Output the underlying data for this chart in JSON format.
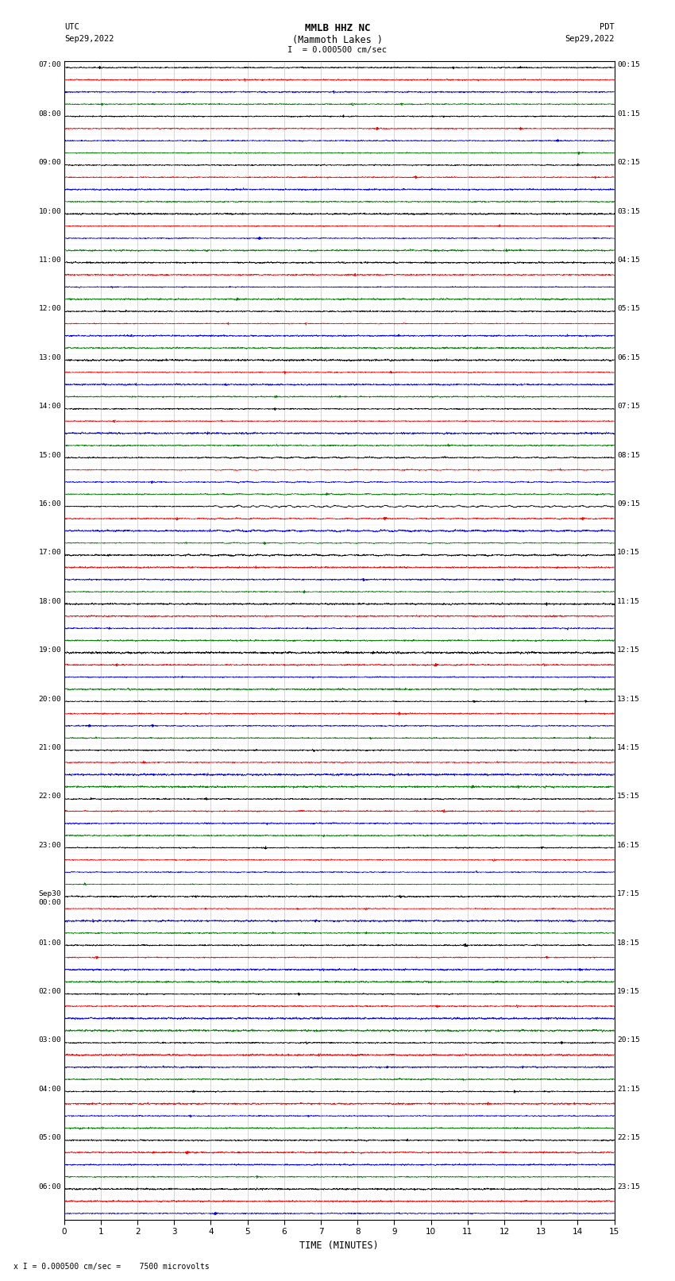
{
  "title_line1": "MMLB HHZ NC",
  "title_line2": "(Mammoth Lakes )",
  "title_line3": "I  = 0.000500 cm/sec",
  "left_header_line1": "UTC",
  "left_header_line2": "Sep29,2022",
  "right_header_line1": "PDT",
  "right_header_line2": "Sep29,2022",
  "xlabel": "TIME (MINUTES)",
  "footer": "x I = 0.000500 cm/sec =    7500 microvolts",
  "x_ticks": [
    0,
    1,
    2,
    3,
    4,
    5,
    6,
    7,
    8,
    9,
    10,
    11,
    12,
    13,
    14,
    15
  ],
  "left_times_labeled": [
    [
      0,
      "07:00"
    ],
    [
      4,
      "08:00"
    ],
    [
      8,
      "09:00"
    ],
    [
      12,
      "10:00"
    ],
    [
      16,
      "11:00"
    ],
    [
      20,
      "12:00"
    ],
    [
      24,
      "13:00"
    ],
    [
      28,
      "14:00"
    ],
    [
      32,
      "15:00"
    ],
    [
      36,
      "16:00"
    ],
    [
      40,
      "17:00"
    ],
    [
      44,
      "18:00"
    ],
    [
      48,
      "19:00"
    ],
    [
      52,
      "20:00"
    ],
    [
      56,
      "21:00"
    ],
    [
      60,
      "22:00"
    ],
    [
      64,
      "23:00"
    ],
    [
      68,
      "Sep30\n00:00"
    ],
    [
      72,
      "01:00"
    ],
    [
      76,
      "02:00"
    ],
    [
      80,
      "03:00"
    ],
    [
      84,
      "04:00"
    ],
    [
      88,
      "05:00"
    ],
    [
      92,
      "06:00"
    ]
  ],
  "right_times_labeled": [
    [
      0,
      "00:15"
    ],
    [
      4,
      "01:15"
    ],
    [
      8,
      "02:15"
    ],
    [
      12,
      "03:15"
    ],
    [
      16,
      "04:15"
    ],
    [
      20,
      "05:15"
    ],
    [
      24,
      "06:15"
    ],
    [
      28,
      "07:15"
    ],
    [
      32,
      "08:15"
    ],
    [
      36,
      "09:15"
    ],
    [
      40,
      "10:15"
    ],
    [
      44,
      "11:15"
    ],
    [
      48,
      "12:15"
    ],
    [
      52,
      "13:15"
    ],
    [
      56,
      "14:15"
    ],
    [
      60,
      "15:15"
    ],
    [
      64,
      "16:15"
    ],
    [
      68,
      "17:15"
    ],
    [
      72,
      "18:15"
    ],
    [
      76,
      "19:15"
    ],
    [
      80,
      "20:15"
    ],
    [
      84,
      "21:15"
    ],
    [
      88,
      "22:15"
    ],
    [
      92,
      "23:15"
    ]
  ],
  "trace_colors": [
    "black",
    "red",
    "blue",
    "green"
  ],
  "num_rows": 95,
  "x_min": 0,
  "x_max": 15,
  "fig_width": 8.5,
  "fig_height": 16.13,
  "dpi": 100,
  "bg_color": "white",
  "noise_seed": 12345,
  "event_rows": [
    32,
    33,
    34,
    35,
    36,
    37,
    38,
    39,
    40
  ],
  "big_event_row": 36,
  "medium_event_rows": [
    28,
    29,
    30,
    31,
    48,
    49,
    50,
    51,
    56,
    57,
    58,
    59,
    60,
    61,
    62,
    63,
    64,
    65,
    66,
    67,
    68,
    72,
    73,
    74,
    75,
    76,
    77,
    78,
    79,
    80,
    81,
    82,
    83
  ]
}
